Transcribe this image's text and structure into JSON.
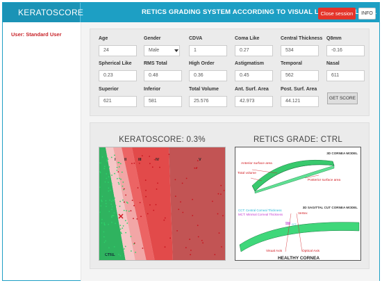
{
  "header": {
    "brand": "KERATOSCORE",
    "title": "RETICS GRADING SYSTEM ACCORDING TO VISUAL LIMITATION LEVEL",
    "close_label": "Close session",
    "info_label": "INFO"
  },
  "sidebar": {
    "user_label": "User: Standard User"
  },
  "form": {
    "fields": [
      {
        "label": "Age",
        "value": "24"
      },
      {
        "label": "Gender",
        "value": "Male"
      },
      {
        "label": "CDVA",
        "value": "1"
      },
      {
        "label": "Coma Like",
        "value": "0.27"
      },
      {
        "label": "Central Thickness",
        "value": "534"
      },
      {
        "label": "Q8mm",
        "value": "-0.16"
      },
      {
        "label": "Spherical Like",
        "value": "0.23"
      },
      {
        "label": "RMS Total",
        "value": "0.48"
      },
      {
        "label": "High Order",
        "value": "0.36"
      },
      {
        "label": "Astigmatism",
        "value": "0.45"
      },
      {
        "label": "Temporal",
        "value": "562"
      },
      {
        "label": "Nasal",
        "value": "611"
      },
      {
        "label": "Superior",
        "value": "621"
      },
      {
        "label": "Inferior",
        "value": "581"
      },
      {
        "label": "Total Volume",
        "value": "25.576"
      },
      {
        "label": "Ant. Surf. Area",
        "value": "42.973"
      },
      {
        "label": "Post. Surf. Area",
        "value": "44.121"
      }
    ],
    "get_score_label": "GET SCORE"
  },
  "results": {
    "keratoscore_title": "KERATOSCORE: 0.3%",
    "retics_title": "RETICS GRADE: CTRL"
  },
  "chart_data": {
    "type": "scatter",
    "title": "",
    "zones": [
      "CTRL",
      "I",
      "II",
      "III",
      "IV",
      "V"
    ],
    "zone_colors": [
      "#2fb35f",
      "#f5c7c7",
      "#f2a6a6",
      "#ec6464",
      "#e24a4a",
      "#c25454"
    ],
    "point_color_ctrl": "#2fd06a",
    "point_color_kc": "#c8141e",
    "marker": "x",
    "marker_color": "#d0141a"
  },
  "diagram": {
    "title_3d": "3D CORNEA MODEL",
    "title_sagittal": "3D SAGITTAL CUT CORNEA MODEL",
    "anterior": "Anterior surface area",
    "total_volume": "Total volume",
    "posterior": "Posterior surface area",
    "cct": "CCT: Central Corneal Thickness",
    "mct": "MCT: Minimal Corneal Thickness",
    "vertex": "Vertex",
    "cct_short": "CCT",
    "mct_short": "MCT",
    "visual_axis": "Visual Axis",
    "optical_axis": "Optical Axis",
    "caption": "HEALTHY CORNEA",
    "label_color": "#d0141a",
    "cct_color": "#1fb4d6",
    "mct_color": "#c03ad0",
    "cornea_color": "#3fd77a"
  }
}
